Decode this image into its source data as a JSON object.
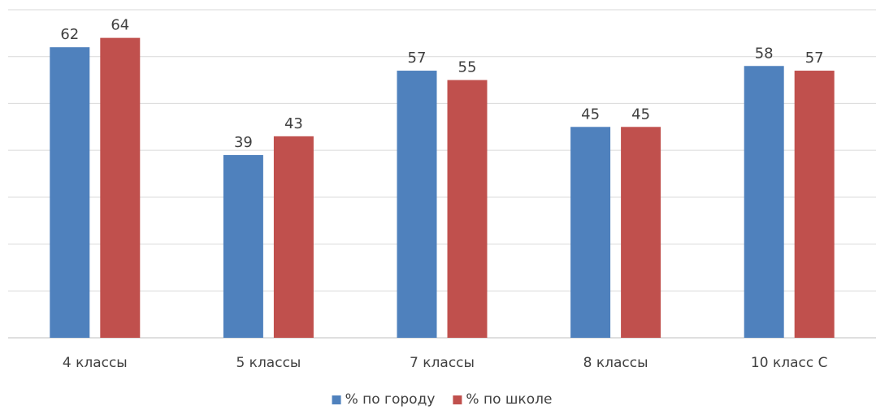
{
  "chart_data": {
    "type": "bar",
    "title": "",
    "xlabel": "",
    "ylabel": "",
    "ylim": [
      0,
      70
    ],
    "grid": true,
    "legend_position": "bottom",
    "categories": [
      "4 классы",
      "5 классы",
      "7 классы",
      "8 классы",
      "10 класс С"
    ],
    "series": [
      {
        "name": "% по городу",
        "color": "#4f81bd",
        "values": [
          62,
          39,
          57,
          45,
          58
        ]
      },
      {
        "name": "% по школе",
        "color": "#c0504d",
        "values": [
          64,
          43,
          55,
          45,
          57
        ]
      }
    ]
  }
}
